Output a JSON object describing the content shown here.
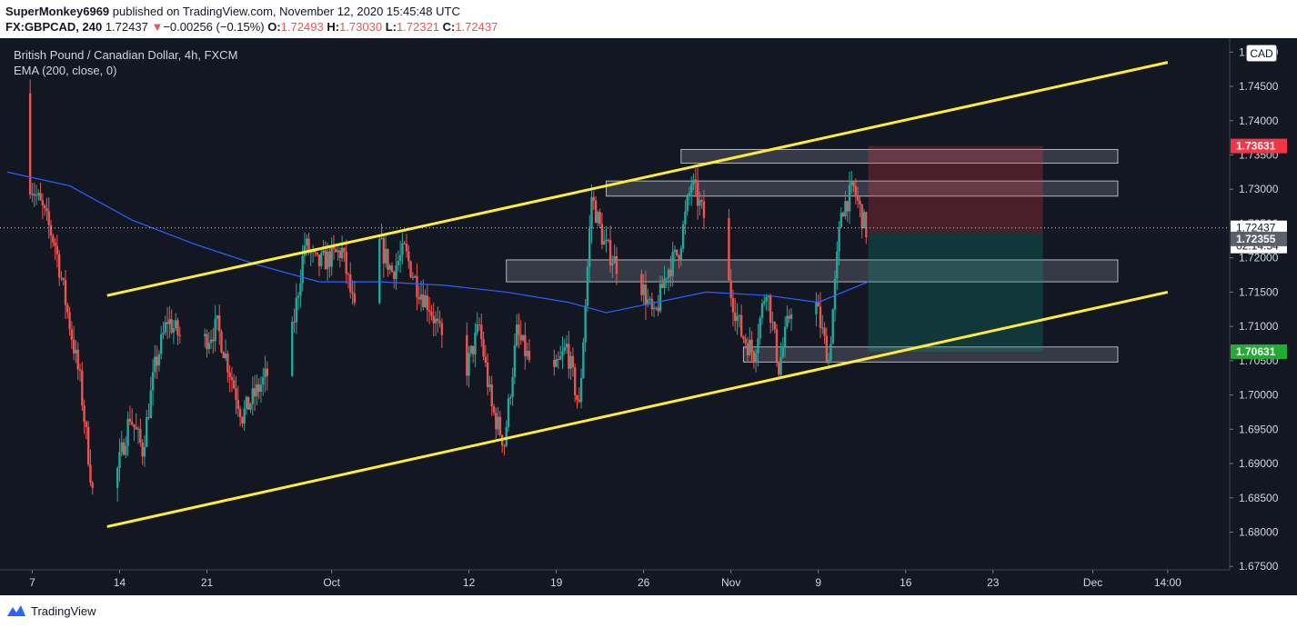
{
  "header": {
    "author": "SuperMonkey6969",
    "published_text": "published on TradingView.com, November 12, 2020 15:45:48 UTC",
    "symbol": "FX:GBPCAD, 240",
    "last": "1.72437",
    "change_arrow": "▼",
    "change": "−0.00256 (−0.15%)",
    "o_label": "O:",
    "o_value": "1.72493",
    "h_label": "H:",
    "h_value": "1.73030",
    "l_label": "L:",
    "l_value": "1.72321",
    "c_label": "C:",
    "c_value": "1.72437"
  },
  "legend": {
    "title": "British Pound / Canadian Dollar, 4h, FXCM",
    "indicator": "EMA (200, close, 0)"
  },
  "currency_button": "CAD",
  "footer": {
    "brand": "TradingView"
  },
  "colors": {
    "background": "#131722",
    "up": "#26a69a",
    "down": "#ef5350",
    "ema": "#2962ff",
    "channel": "#ffeb3b",
    "stop_zone": "#f23645",
    "target_zone": "#089981"
  },
  "chart_data": {
    "type": "candlestick",
    "timeframe": "4h",
    "ylim": [
      1.6745,
      1.7515
    ],
    "y_ticks": [
      1.675,
      1.68,
      1.685,
      1.69,
      1.695,
      1.7,
      1.705,
      1.71,
      1.715,
      1.72,
      1.725,
      1.73,
      1.735,
      1.74,
      1.745,
      1.75
    ],
    "x_ticks": [
      {
        "label": "7",
        "date": "2020-09-07"
      },
      {
        "label": "14",
        "date": "2020-09-14"
      },
      {
        "label": "21",
        "date": "2020-09-21"
      },
      {
        "label": "Oct",
        "date": "2020-10-01"
      },
      {
        "label": "12",
        "date": "2020-10-12"
      },
      {
        "label": "19",
        "date": "2020-10-19"
      },
      {
        "label": "26",
        "date": "2020-10-26"
      },
      {
        "label": "Nov",
        "date": "2020-11-02"
      },
      {
        "label": "9",
        "date": "2020-11-09"
      },
      {
        "label": "16",
        "date": "2020-11-16"
      },
      {
        "label": "23",
        "date": "2020-11-23"
      },
      {
        "label": "Dec",
        "date": "2020-12-01"
      },
      {
        "label": "14:00",
        "date": "2020-12-07"
      }
    ],
    "xlim": [
      "2020-09-05",
      "2020-12-10"
    ],
    "price_path": [
      [
        "2020-09-05",
        1.744
      ],
      [
        "2020-09-06",
        1.743
      ],
      [
        "2020-09-07",
        1.731
      ],
      [
        "2020-09-08",
        1.727
      ],
      [
        "2020-09-09",
        1.722
      ],
      [
        "2020-09-10",
        1.712
      ],
      [
        "2020-09-11",
        1.702
      ],
      [
        "2020-09-12",
        1.686
      ],
      [
        "2020-09-13",
        1.684
      ],
      [
        "2020-09-14",
        1.689
      ],
      [
        "2020-09-15",
        1.697
      ],
      [
        "2020-09-16",
        1.692
      ],
      [
        "2020-09-17",
        1.704
      ],
      [
        "2020-09-18",
        1.711
      ],
      [
        "2020-09-20",
        1.706
      ],
      [
        "2020-09-22",
        1.71
      ],
      [
        "2020-09-24",
        1.697
      ],
      [
        "2020-09-26",
        1.703
      ],
      [
        "2020-09-28",
        1.709
      ],
      [
        "2020-09-29",
        1.722
      ],
      [
        "2020-09-30",
        1.719
      ],
      [
        "2020-10-01",
        1.72
      ],
      [
        "2020-10-02",
        1.721
      ],
      [
        "2020-10-03",
        1.712
      ],
      [
        "2020-10-04",
        1.718
      ],
      [
        "2020-10-05",
        1.722
      ],
      [
        "2020-10-06",
        1.718
      ],
      [
        "2020-10-07",
        1.721
      ],
      [
        "2020-10-08",
        1.716
      ],
      [
        "2020-10-09",
        1.713
      ],
      [
        "2020-10-10",
        1.708
      ],
      [
        "2020-10-11",
        1.71
      ],
      [
        "2020-10-12",
        1.704
      ],
      [
        "2020-10-13",
        1.71
      ],
      [
        "2020-10-14",
        1.698
      ],
      [
        "2020-10-15",
        1.693
      ],
      [
        "2020-10-16",
        1.709
      ],
      [
        "2020-10-17",
        1.705
      ],
      [
        "2020-10-18",
        1.707
      ],
      [
        "2020-10-19",
        1.703
      ],
      [
        "2020-10-20",
        1.707
      ],
      [
        "2020-10-21",
        1.698
      ],
      [
        "2020-10-22",
        1.729
      ],
      [
        "2020-10-23",
        1.722
      ],
      [
        "2020-10-24",
        1.719
      ],
      [
        "2020-10-25",
        1.714
      ],
      [
        "2020-10-26",
        1.716
      ],
      [
        "2020-10-27",
        1.711
      ],
      [
        "2020-10-28",
        1.718
      ],
      [
        "2020-10-29",
        1.721
      ],
      [
        "2020-10-30",
        1.731
      ],
      [
        "2020-10-31",
        1.726
      ],
      [
        "2020-11-01",
        1.722
      ],
      [
        "2020-11-02",
        1.716
      ],
      [
        "2020-11-03",
        1.709
      ],
      [
        "2020-11-04",
        1.706
      ],
      [
        "2020-11-05",
        1.716
      ],
      [
        "2020-11-06",
        1.704
      ],
      [
        "2020-11-07",
        1.713
      ],
      [
        "2020-11-08",
        1.716
      ],
      [
        "2020-11-09",
        1.713
      ],
      [
        "2020-11-10",
        1.705
      ],
      [
        "2020-11-11",
        1.727
      ],
      [
        "2020-11-12",
        1.73
      ],
      [
        "2020-11-13",
        1.724
      ]
    ],
    "ema_200": [
      [
        "2020-09-05",
        1.7325
      ],
      [
        "2020-09-10",
        1.7305
      ],
      [
        "2020-09-15",
        1.7255
      ],
      [
        "2020-09-20",
        1.722
      ],
      [
        "2020-09-25",
        1.719
      ],
      [
        "2020-09-30",
        1.7165
      ],
      [
        "2020-10-05",
        1.7165
      ],
      [
        "2020-10-10",
        1.716
      ],
      [
        "2020-10-15",
        1.715
      ],
      [
        "2020-10-20",
        1.7135
      ],
      [
        "2020-10-23",
        1.712
      ],
      [
        "2020-10-27",
        1.7135
      ],
      [
        "2020-10-31",
        1.715
      ],
      [
        "2020-11-05",
        1.7145
      ],
      [
        "2020-11-09",
        1.7135
      ],
      [
        "2020-11-13",
        1.7165
      ]
    ],
    "channel_lines": [
      {
        "from": [
          "2020-09-13",
          1.7145
        ],
        "to": [
          "2020-12-07",
          1.7485
        ]
      },
      {
        "from": [
          "2020-09-13",
          1.6808
        ],
        "to": [
          "2020-12-07",
          1.715
        ]
      }
    ],
    "zones": [
      {
        "from": [
          "2020-10-29",
          1.7338
        ],
        "to": [
          "2020-12-03",
          1.7358
        ]
      },
      {
        "from": [
          "2020-10-23",
          1.729
        ],
        "to": [
          "2020-12-03",
          1.7312
        ]
      },
      {
        "from": [
          "2020-10-15",
          1.7165
        ],
        "to": [
          "2020-12-03",
          1.7197
        ]
      },
      {
        "from": [
          "2020-11-03",
          1.7048
        ],
        "to": [
          "2020-12-03",
          1.707
        ]
      }
    ],
    "position": {
      "entry": 1.7236,
      "stop": 1.7363,
      "target": 1.7063,
      "start": "2020-11-13",
      "end": "2020-11-27"
    },
    "current_price": 1.72437,
    "price_labels": [
      {
        "value": 1.73631,
        "text": "1.73631",
        "kind": "stop"
      },
      {
        "value": 1.72437,
        "text": "1.72437",
        "kind": "last"
      },
      {
        "value": 1.7224,
        "text": "02:14:54",
        "kind": "countdown"
      },
      {
        "value": 1.72355,
        "text": "1.72355",
        "kind": "entry"
      },
      {
        "value": 1.70631,
        "text": "1.70631",
        "kind": "target"
      }
    ]
  }
}
